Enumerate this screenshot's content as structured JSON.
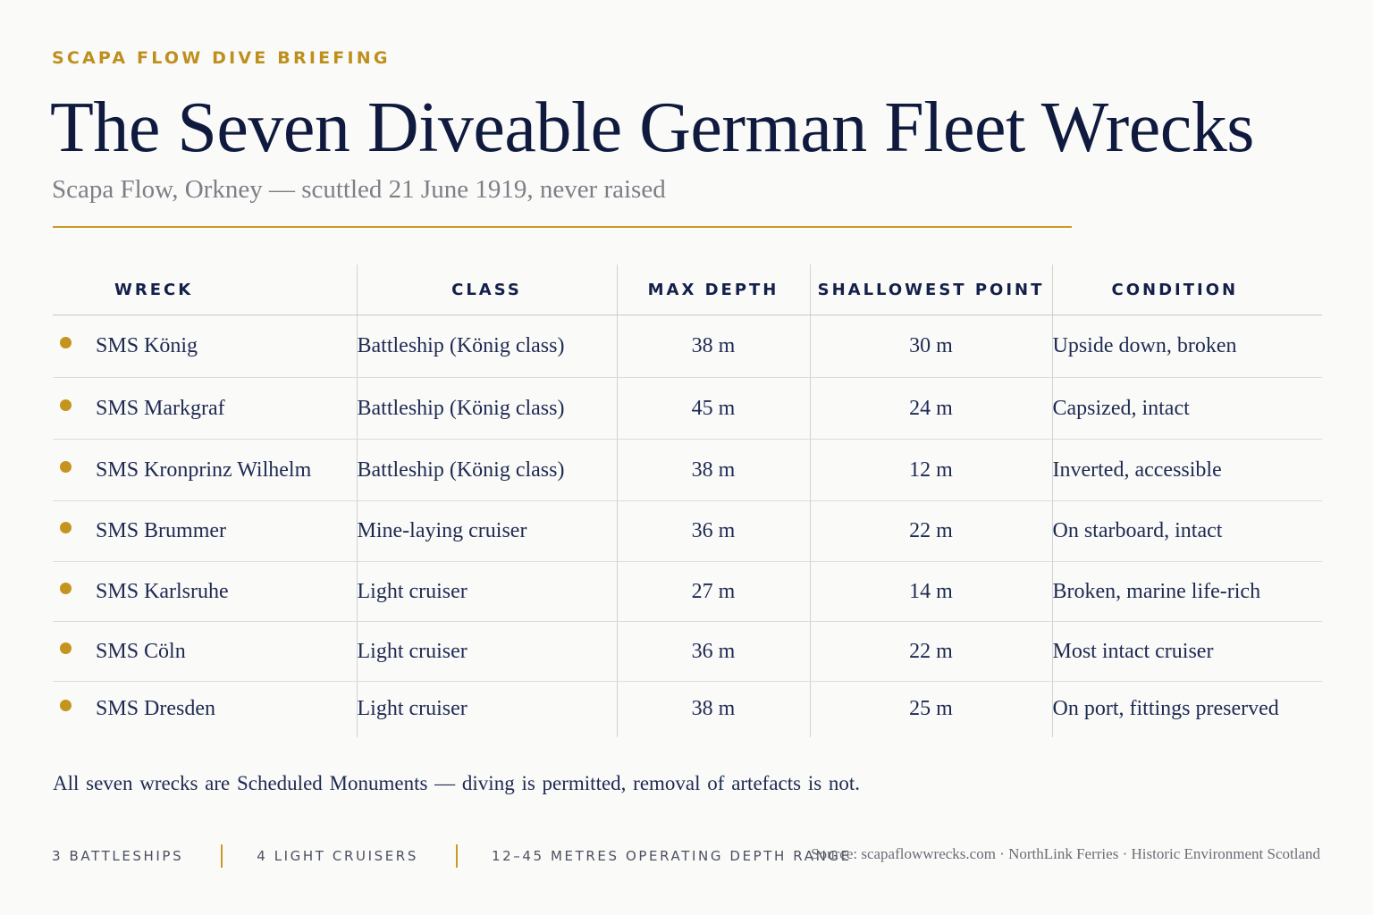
{
  "header": {
    "eyebrow": "SCAPA FLOW DIVE BRIEFING",
    "title": "The Seven Diveable German Fleet Wrecks",
    "subtitle": "Scapa Flow, Orkney — scuttled 21 June 1919, never raised"
  },
  "table": {
    "columns": [
      "WRECK",
      "CLASS",
      "MAX DEPTH",
      "SHALLOWEST POINT",
      "CONDITION"
    ],
    "rows": [
      {
        "wreck": "SMS König",
        "class": "Battleship (König class)",
        "max_depth": "38 m",
        "shallowest": "30 m",
        "condition": "Upside down, broken"
      },
      {
        "wreck": "SMS Markgraf",
        "class": "Battleship (König class)",
        "max_depth": "45 m",
        "shallowest": "24 m",
        "condition": "Capsized, intact"
      },
      {
        "wreck": "SMS Kronprinz Wilhelm",
        "class": "Battleship (König class)",
        "max_depth": "38 m",
        "shallowest": "12 m",
        "condition": "Inverted, accessible"
      },
      {
        "wreck": "SMS Brummer",
        "class": "Mine-laying cruiser",
        "max_depth": "36 m",
        "shallowest": "22 m",
        "condition": "On starboard, intact"
      },
      {
        "wreck": "SMS Karlsruhe",
        "class": "Light cruiser",
        "max_depth": "27 m",
        "shallowest": "14 m",
        "condition": "Broken, marine life-rich"
      },
      {
        "wreck": "SMS Cöln",
        "class": "Light cruiser",
        "max_depth": "36 m",
        "shallowest": "22 m",
        "condition": "Most intact cruiser"
      },
      {
        "wreck": "SMS Dresden",
        "class": "Light cruiser",
        "max_depth": "38 m",
        "shallowest": "25 m",
        "condition": "On port, fittings preserved"
      }
    ]
  },
  "note": "All seven wrecks are Scheduled Monuments — diving is permitted, removal of artefacts is not.",
  "footer": {
    "stats": [
      "3 BATTLESHIPS",
      "4 LIGHT CRUISERS",
      "12–45 METRES OPERATING DEPTH RANGE"
    ],
    "source": "Source: scapaflowwrecks.com · NorthLink Ferries · Historic Environment Scotland"
  },
  "colors": {
    "accent_gold": "#c4941f",
    "navy": "#14204a",
    "background": "#fafaf8"
  },
  "icons": {
    "row_marker": "bullet-dot-icon"
  }
}
